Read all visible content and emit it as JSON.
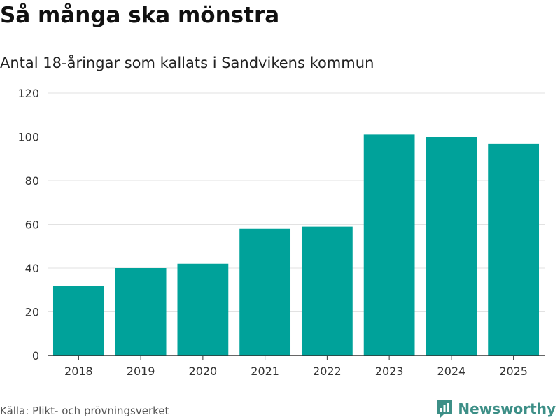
{
  "title": "Så många ska mönstra",
  "subtitle": "Antal 18-åringar som kallats i Sandvikens kommun",
  "source": "Källa: Plikt- och prövningsverket",
  "brand": "Newsworthy",
  "colors": {
    "bar": "#00a29a",
    "grid": "#e2e2e2",
    "axis": "#333333",
    "brand": "#3d8f87"
  },
  "chart_data": {
    "type": "bar",
    "title": "Så många ska mönstra",
    "subtitle": "Antal 18-åringar som kallats i Sandvikens kommun",
    "xlabel": "",
    "ylabel": "",
    "categories": [
      "2018",
      "2019",
      "2020",
      "2021",
      "2022",
      "2023",
      "2024",
      "2025"
    ],
    "values": [
      32,
      40,
      42,
      58,
      59,
      101,
      100,
      97
    ],
    "ylim": [
      0,
      120
    ],
    "yticks": [
      0,
      20,
      40,
      60,
      80,
      100,
      120
    ],
    "grid": true,
    "legend": "none"
  }
}
